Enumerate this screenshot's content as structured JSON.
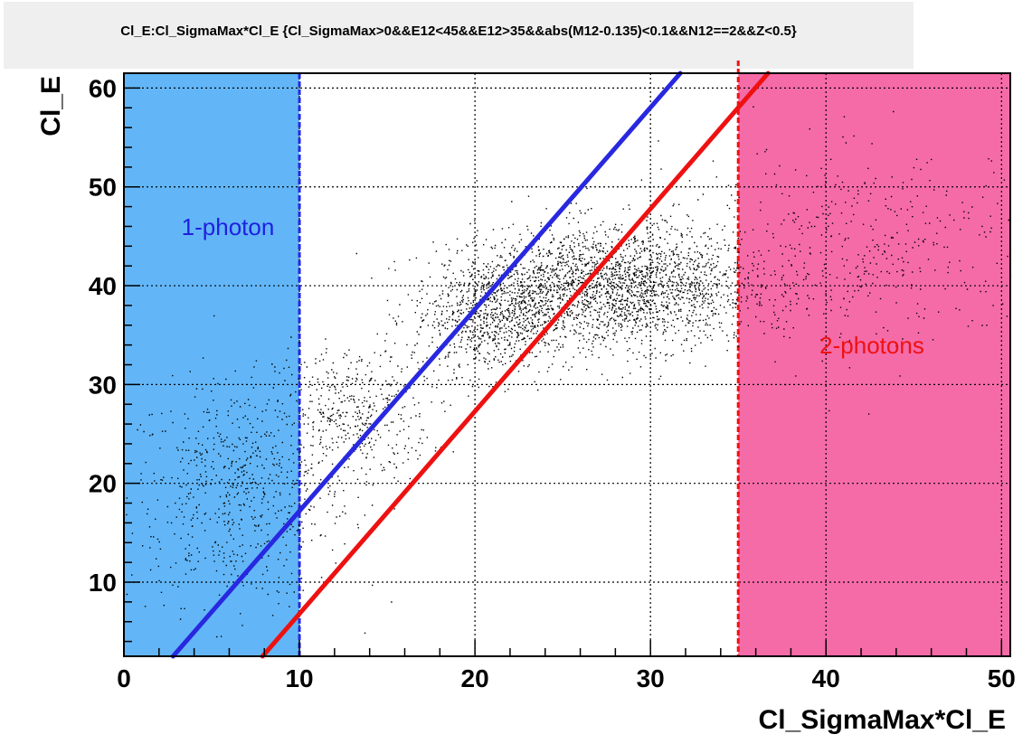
{
  "title": "Cl_E:Cl_SigmaMax*Cl_E {Cl_SigmaMax>0&&E12<45&&E12>35&&abs(M12-0.135)<0.1&&N12==2&&Z<0.5}",
  "chart_data": {
    "type": "scatter",
    "title": "Cl_E:Cl_SigmaMax*Cl_E {Cl_SigmaMax>0&&E12<45&&E12>35&&abs(M12-0.135)<0.1&&N12==2&&Z<0.5}",
    "xlabel": "Cl_SigmaMax*Cl_E",
    "ylabel": "Cl_E",
    "xlim": [
      0,
      50.5
    ],
    "ylim": [
      2.5,
      61.5
    ],
    "x_ticks": [
      0,
      10,
      20,
      30,
      40,
      50
    ],
    "y_ticks": [
      10,
      20,
      30,
      40,
      50,
      60
    ],
    "grid": true,
    "regions": [
      {
        "label": "1-photon",
        "x_range": [
          0,
          10
        ],
        "color": "#62b6f7",
        "label_color": "#2020e0"
      },
      {
        "label": "2-photons",
        "x_range": [
          35,
          50.5
        ],
        "color": "#f56ba8",
        "label_color": "#ee1111"
      }
    ],
    "lines": [
      {
        "color": "#2828e0",
        "points": [
          [
            2.8,
            2.5
          ],
          [
            31.7,
            61.5
          ]
        ]
      },
      {
        "color": "#ee1111",
        "points": [
          [
            7.9,
            2.5
          ],
          [
            36.7,
            61.5
          ]
        ]
      }
    ],
    "point_color": "#000000",
    "clusters": [
      {
        "center": [
          6.5,
          19
        ],
        "spread": [
          3.2,
          5.5
        ],
        "count": 650
      },
      {
        "center": [
          13,
          27
        ],
        "spread": [
          2.2,
          3.5
        ],
        "count": 450
      },
      {
        "center": [
          21,
          37
        ],
        "spread": [
          2.3,
          3.0
        ],
        "count": 900
      },
      {
        "center": [
          28,
          40
        ],
        "spread": [
          4.0,
          3.0
        ],
        "count": 2200
      },
      {
        "center": [
          42,
          44
        ],
        "spread": [
          5.5,
          5.0
        ],
        "count": 450
      }
    ]
  }
}
